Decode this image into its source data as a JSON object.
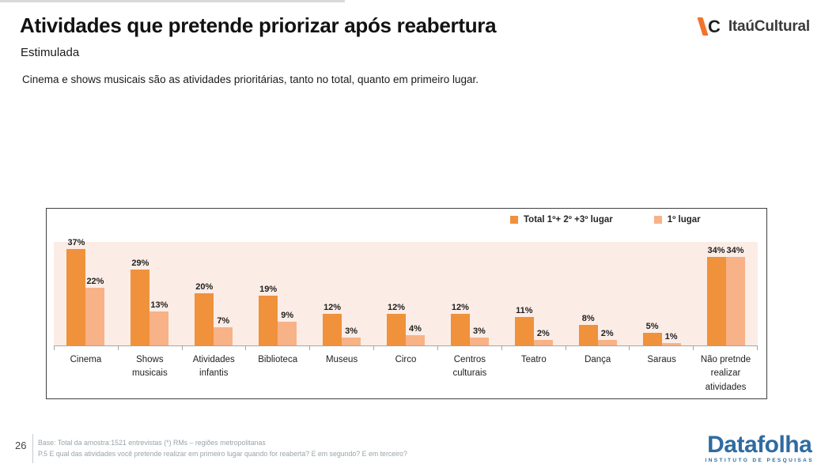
{
  "header": {
    "title": "Atividades que pretende priorizar após reabertura",
    "subtitle": "Estimulada",
    "statement": "Cinema e shows musicais são as atividades prioritárias, tanto no total, quanto em primeiro lugar."
  },
  "logos": {
    "itau_c": "C",
    "itau_word": "ItaúCultural",
    "itau_orange": "#F0752C",
    "datafolha_word": "Datafolha",
    "datafolha_sub": "INSTITUTO DE PESQUISAS",
    "datafolha_blue": "#2F6BA1"
  },
  "chart_data": {
    "type": "bar",
    "categories": [
      "Cinema",
      "Shows musicais",
      "Atividades infantis",
      "Biblioteca",
      "Museus",
      "Circo",
      "Centros culturais",
      "Teatro",
      "Dança",
      "Saraus",
      "Não pretnde realizar atividades"
    ],
    "series": [
      {
        "name": "Total 1º+ 2º +3º lugar",
        "color": "#F0913C",
        "values": [
          37,
          29,
          20,
          19,
          12,
          12,
          12,
          11,
          8,
          5,
          34
        ]
      },
      {
        "name": "1º lugar",
        "color": "#F7B287",
        "values": [
          22,
          13,
          7,
          9,
          3,
          4,
          3,
          2,
          2,
          1,
          34
        ]
      }
    ],
    "value_suffix": "%",
    "title": "Atividades que pretende priorizar após reabertura",
    "xlabel": "",
    "ylabel": "",
    "ylim": [
      0,
      40
    ],
    "grid": false,
    "legend_position": "top-right",
    "plot_bg": "#FBEDE6"
  },
  "footer": {
    "page_number": "26",
    "base_line": "Base: Total da amostra:1521 entrevistas  (*) RMs – regiões metropolitanas",
    "question_line": "P.5 E qual das atividades você pretende realizar em primeiro lugar quando for reaberta? E em segundo? E em terceiro?"
  }
}
